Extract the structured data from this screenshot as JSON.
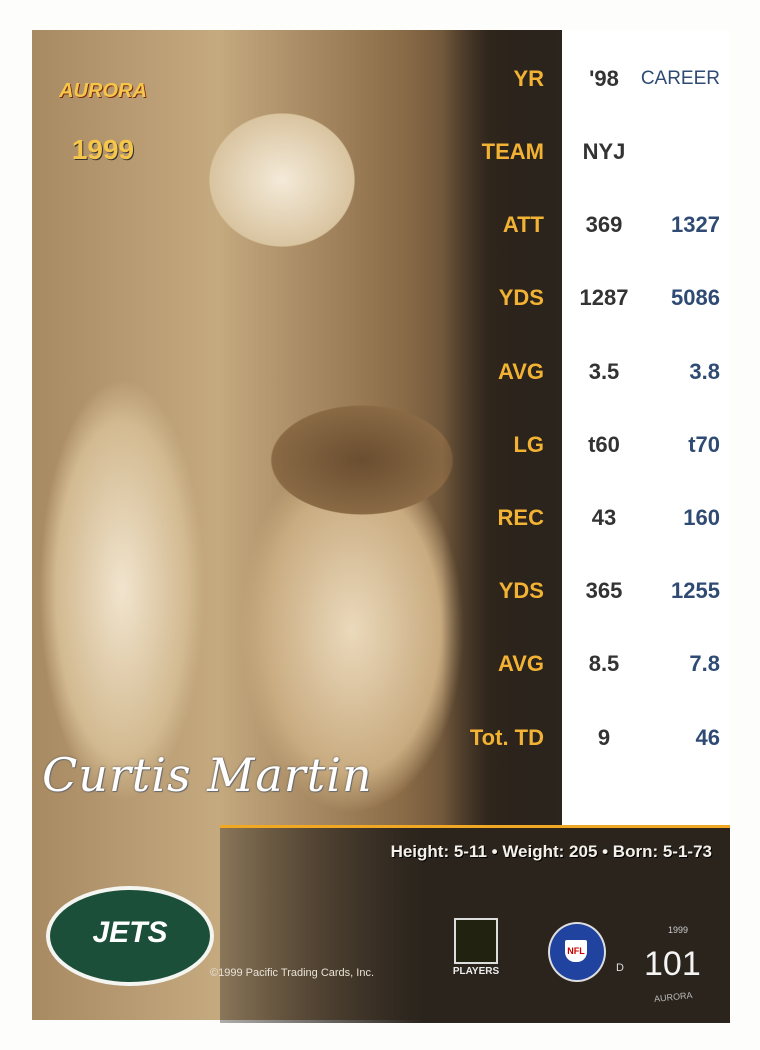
{
  "brand": {
    "logo_text": "AURORA",
    "logo_year": "1999"
  },
  "player": {
    "name": "Curtis Martin",
    "vitals": "Height: 5-11 • Weight: 205 • Born: 5-1-73"
  },
  "stats": {
    "headers": {
      "label": "YR",
      "season": "'98",
      "career": "CAREER"
    },
    "rows": [
      {
        "label": "TEAM",
        "season": "NYJ",
        "career": ""
      },
      {
        "label": "ATT",
        "season": "369",
        "career": "1327"
      },
      {
        "label": "YDS",
        "season": "1287",
        "career": "5086"
      },
      {
        "label": "AVG",
        "season": "3.5",
        "career": "3.8"
      },
      {
        "label": "LG",
        "season": "t60",
        "career": "t70"
      },
      {
        "label": "REC",
        "season": "43",
        "career": "160"
      },
      {
        "label": "YDS",
        "season": "365",
        "career": "1255"
      },
      {
        "label": "AVG",
        "season": "8.5",
        "career": "7.8"
      },
      {
        "label": "Tot. TD",
        "season": "9",
        "career": "46"
      }
    ]
  },
  "footer": {
    "team_logo": "JETS",
    "copyright": "©1999 Pacific Trading Cards, Inc.",
    "players_logo": "PLAYERS",
    "nfl_logo": "NFL",
    "d_mark": "D",
    "set_year": "1999",
    "card_number": "101",
    "set_name": "AURORA"
  },
  "colors": {
    "label": "#f2b233",
    "career": "#2f4b74",
    "jets_green": "#1b4f3a",
    "accent": "#f0a824"
  }
}
